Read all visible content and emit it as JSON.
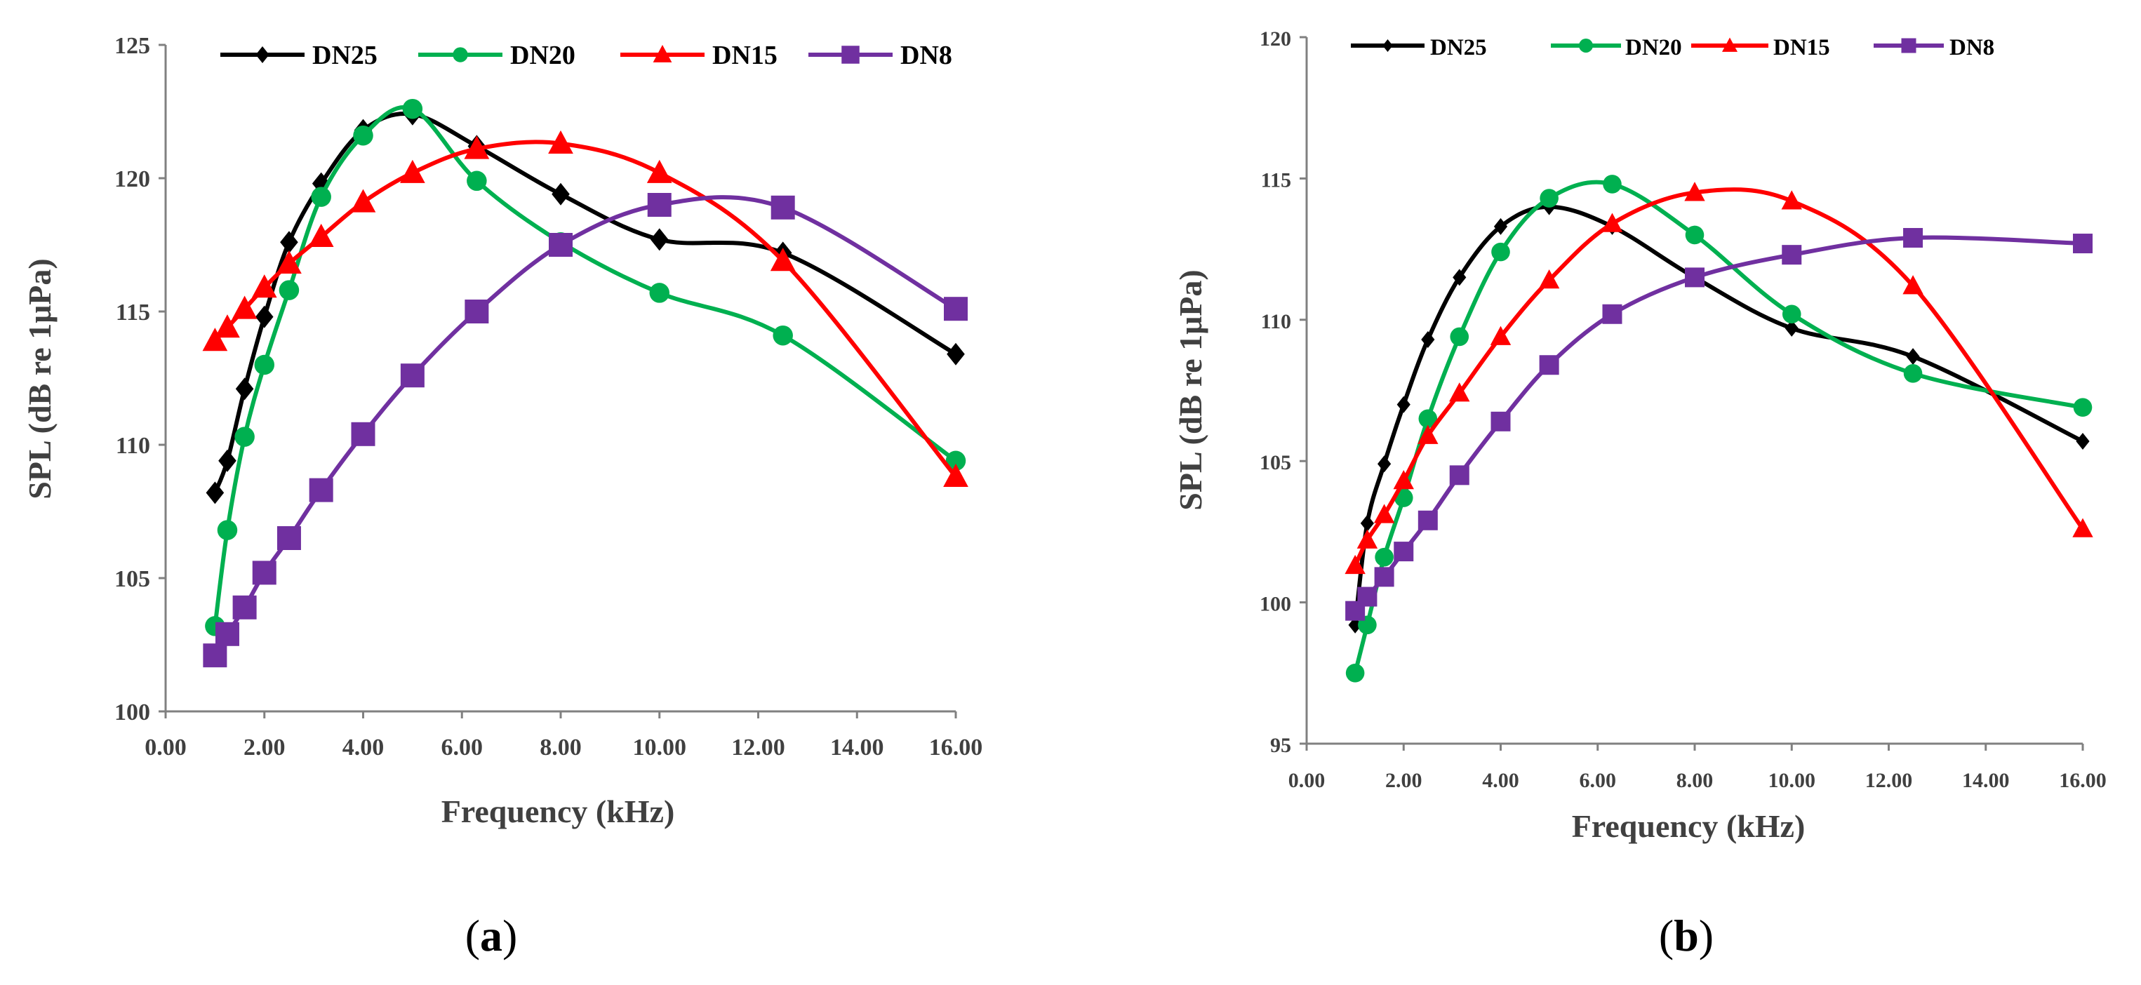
{
  "colors": {
    "DN25": "#000000",
    "DN20": "#00B050",
    "DN15": "#FF0000",
    "DN8": "#7030A0",
    "axis": "#808080",
    "text": "#404040"
  },
  "chart_data": [
    {
      "type": "line",
      "panel_label": {
        "open": "(",
        "letter": "a",
        "close": ")"
      },
      "xlabel": "Frequency  (kHz)",
      "ylabel": "SPL (dB  re 1μPa)",
      "xlim": [
        0,
        16
      ],
      "ylim": [
        100,
        125
      ],
      "xticks": [
        0,
        2,
        4,
        6,
        8,
        10,
        12,
        14,
        16
      ],
      "xtick_labels": [
        "0.00",
        "2.00",
        "4.00",
        "6.00",
        "8.00",
        "10.00",
        "12.00",
        "14.00",
        "16.00"
      ],
      "yticks": [
        100,
        105,
        110,
        115,
        120,
        125
      ],
      "ytick_labels": [
        "100",
        "105",
        "110",
        "115",
        "120",
        "125"
      ],
      "x": [
        1,
        1.25,
        1.6,
        2,
        2.5,
        3.15,
        4,
        5,
        6.3,
        8,
        10,
        12.5,
        16
      ],
      "series": [
        {
          "name": "DN25",
          "marker": "diamond",
          "values": [
            108.2,
            109.4,
            112.1,
            114.8,
            117.6,
            119.8,
            121.8,
            122.4,
            121.2,
            119.4,
            117.7,
            117.2,
            113.4
          ]
        },
        {
          "name": "DN20",
          "marker": "circle",
          "values": [
            103.2,
            106.8,
            110.3,
            113.0,
            115.8,
            119.3,
            121.6,
            122.6,
            119.9,
            117.6,
            115.7,
            114.1,
            109.4
          ]
        },
        {
          "name": "DN15",
          "marker": "triangle",
          "values": [
            113.9,
            114.4,
            115.1,
            115.9,
            116.8,
            117.8,
            119.1,
            120.2,
            121.1,
            121.3,
            120.2,
            116.9,
            108.8
          ]
        },
        {
          "name": "DN8",
          "marker": "square",
          "values": [
            102.1,
            102.9,
            103.9,
            105.2,
            106.5,
            108.3,
            110.4,
            112.6,
            115.0,
            117.5,
            119.0,
            118.9,
            115.1
          ]
        }
      ]
    },
    {
      "type": "line",
      "panel_label": {
        "open": "(",
        "letter": "b",
        "close": ")"
      },
      "xlabel": "Frequency  (kHz)",
      "ylabel": "SPL (dB  re 1μPa)",
      "xlim": [
        0,
        16
      ],
      "ylim": [
        95,
        120
      ],
      "xticks": [
        0,
        2,
        4,
        6,
        8,
        10,
        12,
        14,
        16
      ],
      "xtick_labels": [
        "0.00",
        "2.00",
        "4.00",
        "6.00",
        "8.00",
        "10.00",
        "12.00",
        "14.00",
        "16.00"
      ],
      "yticks": [
        95,
        100,
        105,
        110,
        115,
        120
      ],
      "ytick_labels": [
        "95",
        "100",
        "105",
        "110",
        "115",
        "120"
      ],
      "x": [
        1,
        1.25,
        1.6,
        2,
        2.5,
        3.15,
        4,
        5,
        6.3,
        8,
        10,
        12.5,
        16
      ],
      "series": [
        {
          "name": "DN25",
          "marker": "diamond",
          "values": [
            99.2,
            102.8,
            104.9,
            107.0,
            109.3,
            111.5,
            113.3,
            114.0,
            113.3,
            111.5,
            109.7,
            108.7,
            105.7
          ]
        },
        {
          "name": "DN20",
          "marker": "circle",
          "values": [
            97.5,
            99.2,
            101.6,
            103.7,
            106.5,
            109.4,
            112.4,
            114.3,
            114.8,
            113.0,
            110.2,
            108.1,
            106.9
          ]
        },
        {
          "name": "DN15",
          "marker": "triangle",
          "values": [
            101.3,
            102.2,
            103.1,
            104.3,
            105.9,
            107.4,
            109.4,
            111.4,
            113.4,
            114.5,
            114.2,
            111.2,
            102.6
          ]
        },
        {
          "name": "DN8",
          "marker": "square",
          "values": [
            99.7,
            100.2,
            100.9,
            101.8,
            102.9,
            104.5,
            106.4,
            108.4,
            110.2,
            111.5,
            112.3,
            112.9,
            112.7
          ]
        }
      ]
    }
  ]
}
